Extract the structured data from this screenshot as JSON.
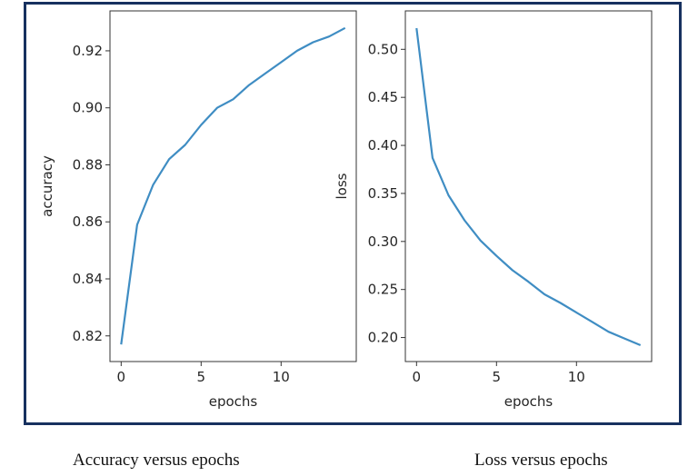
{
  "colors": {
    "frame": "#17315f",
    "line": "#3f8dc3",
    "axis": "#333333",
    "text": "#262626"
  },
  "captions": {
    "left": "Accuracy versus epochs",
    "right": "Loss versus epochs"
  },
  "chart_data": [
    {
      "type": "line",
      "title": "",
      "xlabel": "epochs",
      "ylabel": "accuracy",
      "xlim": [
        -0.7,
        14.7
      ],
      "ylim": [
        0.811,
        0.934
      ],
      "xticks": [
        0,
        5,
        10
      ],
      "yticks": [
        0.82,
        0.84,
        0.86,
        0.88,
        0.9,
        0.92
      ],
      "ytick_labels": [
        "0.82",
        "0.84",
        "0.86",
        "0.88",
        "0.90",
        "0.92"
      ],
      "grid": false,
      "series": [
        {
          "x": [
            0,
            1,
            2,
            3,
            4,
            5,
            6,
            7,
            8,
            9,
            10,
            11,
            12,
            13,
            14
          ],
          "values": [
            0.817,
            0.859,
            0.873,
            0.882,
            0.887,
            0.894,
            0.9,
            0.903,
            0.908,
            0.912,
            0.916,
            0.92,
            0.923,
            0.925,
            0.928
          ]
        }
      ]
    },
    {
      "type": "line",
      "title": "",
      "xlabel": "epochs",
      "ylabel": "loss",
      "xlim": [
        -0.7,
        14.7
      ],
      "ylim": [
        0.175,
        0.54
      ],
      "xticks": [
        0,
        5,
        10
      ],
      "yticks": [
        0.2,
        0.25,
        0.3,
        0.35,
        0.4,
        0.45,
        0.5
      ],
      "ytick_labels": [
        "0.20",
        "0.25",
        "0.30",
        "0.35",
        "0.40",
        "0.45",
        "0.50"
      ],
      "grid": false,
      "series": [
        {
          "x": [
            0,
            1,
            2,
            3,
            4,
            5,
            6,
            7,
            8,
            9,
            10,
            11,
            12,
            13,
            14
          ],
          "values": [
            0.522,
            0.387,
            0.348,
            0.322,
            0.301,
            0.285,
            0.27,
            0.258,
            0.245,
            0.236,
            0.226,
            0.216,
            0.206,
            0.199,
            0.192
          ]
        }
      ]
    }
  ]
}
